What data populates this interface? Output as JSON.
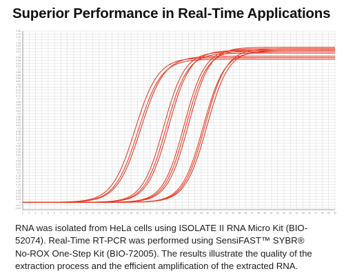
{
  "title": "Superior Performance in Real-Time Applications",
  "caption": {
    "lines": [
      "RNA was isolated from HeLa cells using ISOLATE II RNA Micro Kit (BIO-",
      "52074). Real-Time RT-PCR was performed using SensiFAST™ SYBR®",
      "No-ROX One-Step Kit (BIO-72005). The results illustrate the quality of the",
      "extraction process and the efficient amplification of the extracted RNA."
    ]
  },
  "colors": {
    "curve": "#e8351f",
    "grid": "#d8d8d8",
    "axis": "#808080",
    "tick_text": "#888888"
  },
  "chart_data": {
    "type": "line",
    "xlim": [
      1,
      50
    ],
    "ylim": [
      -0.05,
      1.16
    ],
    "x_ticks": [
      1,
      2,
      3,
      4,
      5,
      6,
      7,
      8,
      9,
      10,
      11,
      12,
      13,
      14,
      15,
      16,
      17,
      18,
      19,
      20,
      21,
      22,
      23,
      24,
      25,
      26,
      27,
      28,
      29,
      30,
      31,
      32,
      33,
      34,
      35,
      36,
      37,
      38,
      39,
      40,
      41,
      42,
      43,
      44,
      45,
      46,
      47,
      48,
      49,
      50
    ],
    "y_ticks": [
      1.16,
      1.14,
      1.12,
      1.1,
      1.08,
      1.06,
      1.04,
      1.02,
      1,
      0.98,
      0.96,
      0.94,
      0.92,
      0.9,
      0.88,
      0.86,
      0.84,
      0.82,
      0.8,
      0.78,
      0.76,
      0.74,
      0.72,
      0.7,
      0.68,
      0.66,
      0.64,
      0.62,
      0.6,
      0.58,
      0.56,
      0.54,
      0.52,
      0.5,
      0.48,
      0.46,
      0.44,
      0.42,
      0.4,
      0.38,
      0.36,
      0.34,
      0.32,
      0.3,
      0.28,
      0.26,
      0.24,
      0.22,
      0.2,
      0.18,
      0.16,
      0.14,
      0.12,
      0.1,
      0.08,
      0.06,
      0.04,
      0.02,
      0,
      -0.02,
      -0.04
    ],
    "grid": true,
    "series": [
      {
        "midpoint": 18.6,
        "slope": 0.55,
        "plateau": 0.98
      },
      {
        "midpoint": 19.1,
        "slope": 0.55,
        "plateau": 0.97
      },
      {
        "midpoint": 19.5,
        "slope": 0.54,
        "plateau": 0.99
      },
      {
        "midpoint": 23.1,
        "slope": 0.6,
        "plateau": 1.02
      },
      {
        "midpoint": 23.5,
        "slope": 0.6,
        "plateau": 1.01
      },
      {
        "midpoint": 23.9,
        "slope": 0.59,
        "plateau": 1.03
      },
      {
        "midpoint": 26.3,
        "slope": 0.61,
        "plateau": 1.04
      },
      {
        "midpoint": 26.6,
        "slope": 0.61,
        "plateau": 1.03
      },
      {
        "midpoint": 27.0,
        "slope": 0.6,
        "plateau": 1.05
      },
      {
        "midpoint": 29.3,
        "slope": 0.6,
        "plateau": 1.02
      },
      {
        "midpoint": 29.6,
        "slope": 0.6,
        "plateau": 1.04
      },
      {
        "midpoint": 29.9,
        "slope": 0.59,
        "plateau": 1.03
      }
    ]
  }
}
